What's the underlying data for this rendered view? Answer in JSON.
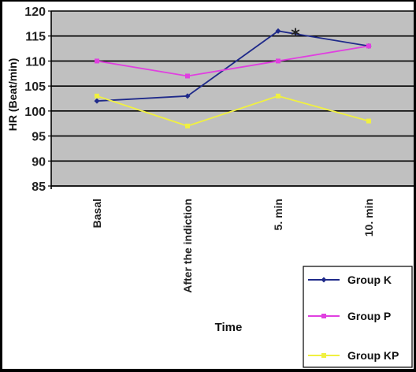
{
  "chart_data": {
    "type": "line",
    "title": "",
    "xlabel": "Time",
    "ylabel": "HR (Beat/min)",
    "categories": [
      "Basal",
      "After the indiction",
      "5. min",
      "10. min"
    ],
    "ylim": [
      85,
      120
    ],
    "yticks": [
      85,
      90,
      95,
      100,
      105,
      110,
      115,
      120
    ],
    "grid": true,
    "plot_background": "#c0c0c0",
    "legend_position": "bottom-right",
    "series": [
      {
        "name": "Group K",
        "color": "#1f2a8a",
        "values": [
          102,
          103,
          116,
          113
        ]
      },
      {
        "name": "Group P",
        "color": "#e040e0",
        "values": [
          110,
          107,
          110,
          113
        ]
      },
      {
        "name": "Group KP",
        "color": "#f0f040",
        "values": [
          103,
          97,
          103,
          98
        ]
      }
    ],
    "annotations": [
      {
        "text": "*",
        "category": "5. min",
        "value": 115.3
      }
    ]
  }
}
